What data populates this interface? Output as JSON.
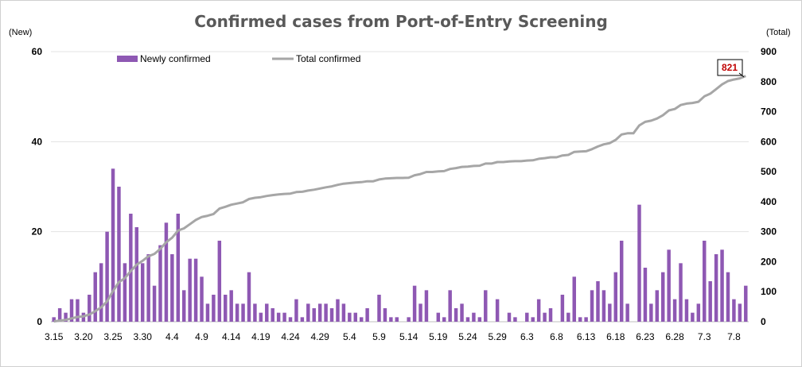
{
  "chart_data": {
    "type": "bar+line",
    "title": "Confirmed cases from Port-of-Entry Screening",
    "left_axis_unit": "(New)",
    "right_axis_unit": "(Total)",
    "y_left": {
      "ylim": [
        0,
        60
      ],
      "ticks": [
        "0",
        "20",
        "40",
        "60"
      ]
    },
    "y_right": {
      "ylim": [
        0,
        900
      ],
      "ticks": [
        "0",
        "100",
        "200",
        "300",
        "400",
        "500",
        "600",
        "700",
        "800",
        "900"
      ]
    },
    "x_tick_labels": [
      "3.15",
      "3.20",
      "3.25",
      "3.30",
      "4.4",
      "4.9",
      "4.14",
      "4.19",
      "4.24",
      "4.29",
      "5.4",
      "5.9",
      "5.14",
      "5.19",
      "5.24",
      "5.29",
      "6.3",
      "6.8",
      "6.13",
      "6.18",
      "6.23",
      "6.28",
      "7.3",
      "7.8"
    ],
    "grid": "horizontal",
    "legend_position": "top-left",
    "series": [
      {
        "name": "Newly confirmed",
        "type": "bar",
        "axis": "left",
        "color": "#8e58b3",
        "values": [
          1,
          3,
          2,
          5,
          5,
          2,
          6,
          11,
          13,
          20,
          34,
          30,
          13,
          24,
          21,
          13,
          15,
          8,
          17,
          22,
          15,
          24,
          7,
          14,
          14,
          10,
          4,
          6,
          18,
          6,
          7,
          4,
          4,
          11,
          4,
          2,
          4,
          3,
          2,
          2,
          1,
          5,
          1,
          4,
          3,
          4,
          4,
          3,
          5,
          4,
          2,
          2,
          1,
          3,
          0,
          6,
          3,
          1,
          1,
          0,
          1,
          8,
          4,
          7,
          0,
          2,
          1,
          7,
          3,
          4,
          1,
          2,
          1,
          7,
          0,
          5,
          0,
          2,
          1,
          0,
          2,
          1,
          5,
          2,
          3,
          0,
          6,
          2,
          10,
          1,
          1,
          7,
          9,
          7,
          4,
          11,
          18,
          4,
          0,
          26,
          12,
          4,
          7,
          11,
          16,
          5,
          13,
          5,
          2,
          4,
          18,
          9,
          15,
          16,
          11,
          5,
          4,
          8
        ]
      },
      {
        "name": "Total confirmed",
        "type": "line",
        "axis": "right",
        "color": "#a6a6a6"
      }
    ],
    "annotations": [
      {
        "text": "821",
        "series": "Total confirmed",
        "point": "last"
      }
    ]
  }
}
